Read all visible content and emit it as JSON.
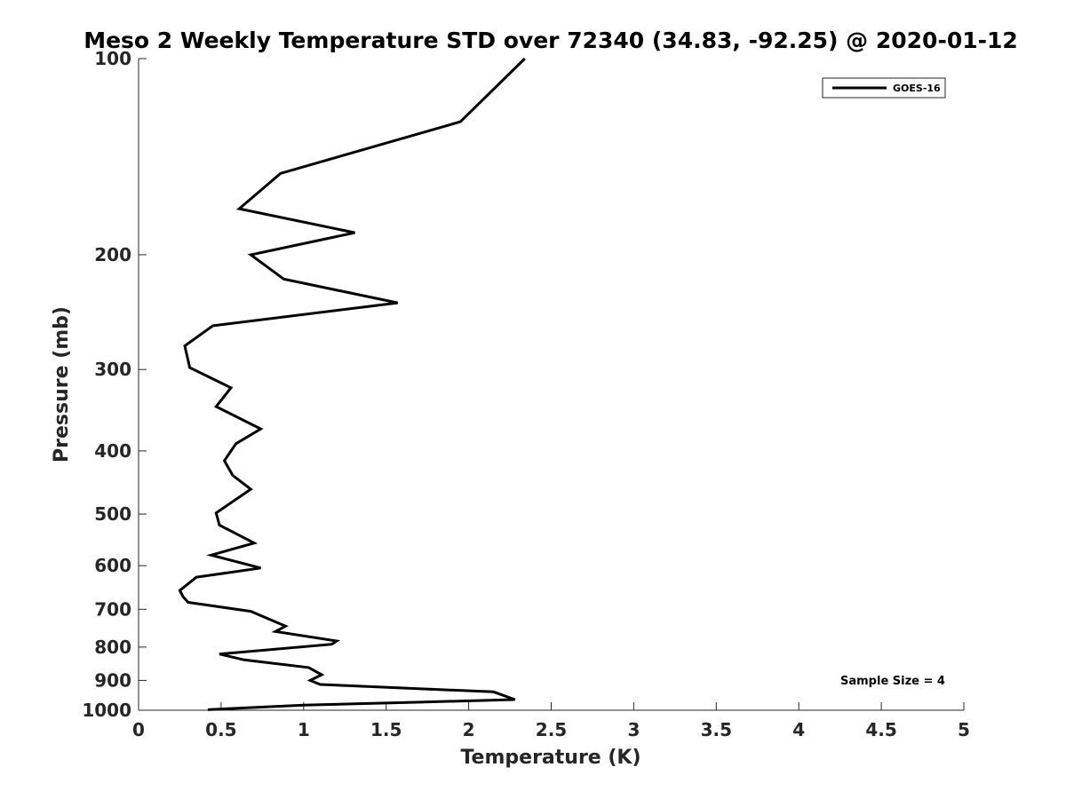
{
  "chart_data": {
    "type": "line",
    "title": "Meso 2 Weekly Temperature STD over 72340 (34.83, -92.25) @ 2020-01-12",
    "xlabel": "Temperature (K)",
    "ylabel": "Pressure (mb)",
    "xlim": [
      0,
      5
    ],
    "ylim": [
      100,
      1000
    ],
    "y_scale": "log",
    "y_reversed": true,
    "x_ticks": [
      "0",
      "0.5",
      "1",
      "1.5",
      "2",
      "2.5",
      "3",
      "3.5",
      "4",
      "4.5",
      "5"
    ],
    "y_ticks": [
      "100",
      "200",
      "300",
      "400",
      "500",
      "600",
      "700",
      "800",
      "900",
      "1000"
    ],
    "legend_position": "top-right",
    "grid": false,
    "annotation": "Sample Size = 4",
    "series": [
      {
        "name": "GOES-16",
        "color": "#000000",
        "points": [
          [
            2.34,
            100
          ],
          [
            1.95,
            125
          ],
          [
            0.86,
            150
          ],
          [
            0.61,
            170
          ],
          [
            1.31,
            185
          ],
          [
            0.68,
            200
          ],
          [
            0.88,
            218
          ],
          [
            1.57,
            237
          ],
          [
            0.45,
            257
          ],
          [
            0.28,
            276
          ],
          [
            0.31,
            298
          ],
          [
            0.56,
            320
          ],
          [
            0.47,
            342
          ],
          [
            0.74,
            370
          ],
          [
            0.59,
            390
          ],
          [
            0.52,
            414
          ],
          [
            0.57,
            436
          ],
          [
            0.68,
            458
          ],
          [
            0.47,
            498
          ],
          [
            0.49,
            520
          ],
          [
            0.7,
            554
          ],
          [
            0.44,
            578
          ],
          [
            0.74,
            605
          ],
          [
            0.35,
            625
          ],
          [
            0.25,
            655
          ],
          [
            0.27,
            670
          ],
          [
            0.3,
            683
          ],
          [
            0.68,
            705
          ],
          [
            0.89,
            743
          ],
          [
            0.83,
            757
          ],
          [
            1.2,
            783
          ],
          [
            1.17,
            792
          ],
          [
            0.49,
            820
          ],
          [
            0.64,
            837
          ],
          [
            1.03,
            860
          ],
          [
            1.11,
            882
          ],
          [
            1.04,
            900
          ],
          [
            1.1,
            913
          ],
          [
            2.15,
            937
          ],
          [
            2.28,
            963
          ],
          [
            1.71,
            972
          ],
          [
            1.0,
            982
          ],
          [
            0.42,
            998
          ]
        ]
      }
    ]
  }
}
